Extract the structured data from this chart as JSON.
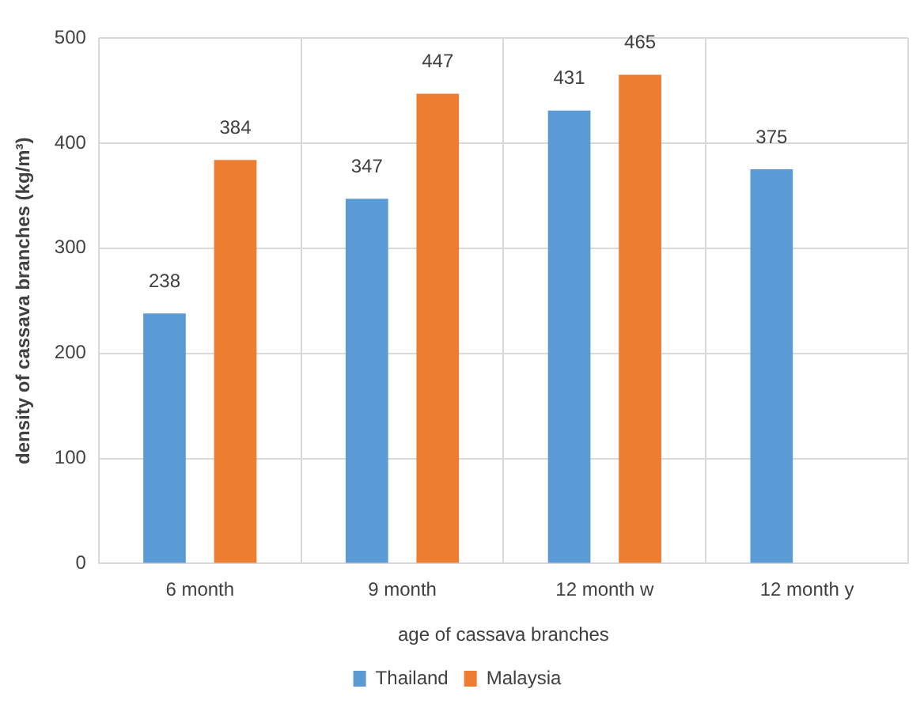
{
  "chart_data": {
    "type": "bar",
    "xlabel": "age of cassava branches",
    "ylabel": "density of cassava branches (kg/m³)",
    "categories": [
      "6 month",
      "9 month",
      "12 month w",
      "12 month y"
    ],
    "series": [
      {
        "name": "Thailand",
        "color": "#5b9bd5",
        "values": [
          238,
          347,
          431,
          375
        ]
      },
      {
        "name": "Malaysia",
        "color": "#ed7d31",
        "values": [
          384,
          447,
          465,
          null
        ]
      }
    ],
    "ylim": [
      0,
      500
    ],
    "yticks": [
      0,
      100,
      200,
      300,
      400,
      500
    ],
    "grid": true,
    "legend": "bottom",
    "data_labels": true
  }
}
